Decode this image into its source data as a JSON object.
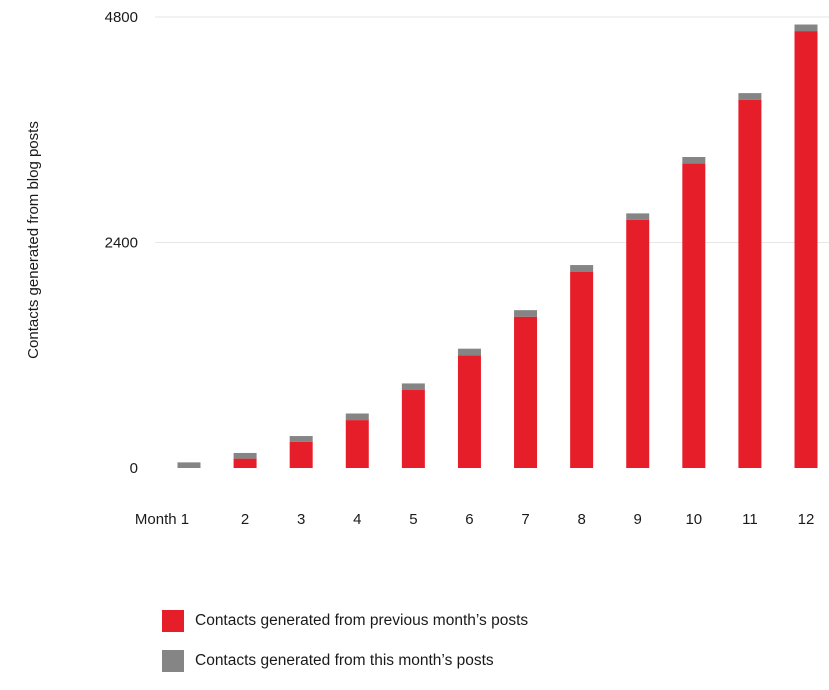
{
  "chart_data": {
    "type": "bar",
    "stacked": true,
    "title": "",
    "xlabel": "",
    "ylabel": "Contacts generated from blog posts",
    "ylim": [
      0,
      4800
    ],
    "yticks": [
      0,
      2400,
      4800
    ],
    "categories": [
      "Month 1",
      "2",
      "3",
      "4",
      "5",
      "6",
      "7",
      "8",
      "9",
      "10",
      "11",
      "12"
    ],
    "series": [
      {
        "name": "Contacts generated from previous month’s posts",
        "color": "#e61e2a",
        "values": [
          0,
          100,
          280,
          510,
          830,
          1200,
          1610,
          2090,
          2640,
          3240,
          3920,
          4650
        ]
      },
      {
        "name": "Contacts generated from this month’s posts",
        "color": "#858585",
        "values": [
          60,
          60,
          60,
          70,
          70,
          70,
          70,
          70,
          70,
          70,
          70,
          70
        ]
      }
    ],
    "grid": true,
    "legend_position": "bottom-left"
  }
}
